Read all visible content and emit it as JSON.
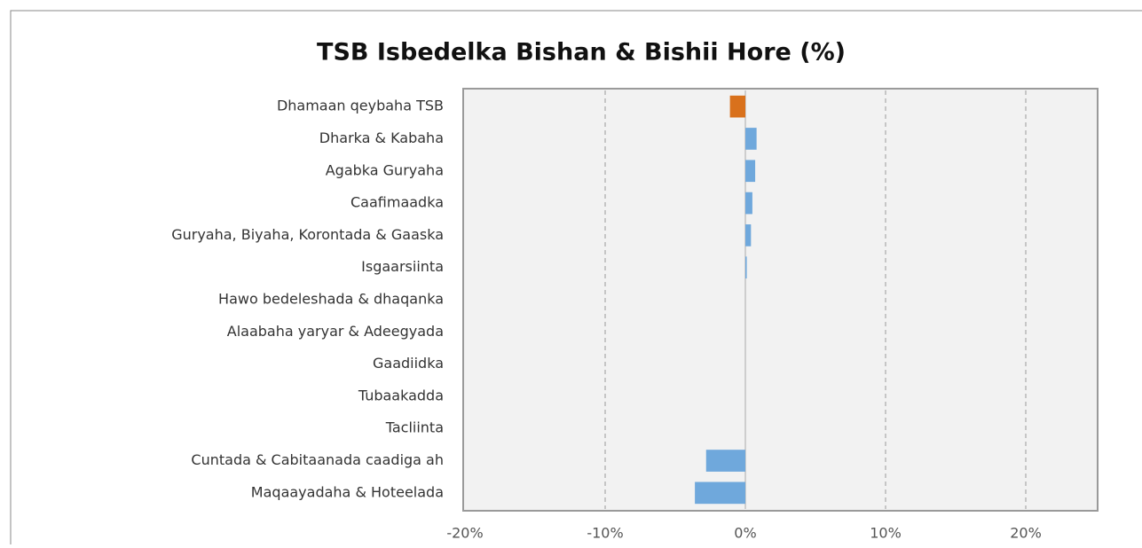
{
  "chart_data": {
    "type": "barh",
    "title": "TSB Isbedelka Bishan & Bishii Hore (%)",
    "categories": [
      "Dhamaan qeybaha  TSB",
      "Dharka & Kabaha",
      "Agabka Guryaha",
      "Caafimaadka",
      "Guryaha, Biyaha, Korontada & Gaaska",
      "Isgaarsiinta",
      "Hawo bedeleshada & dhaqanka",
      "Alaabaha yaryar & Adeegyada",
      "Gaadiidka",
      "Tubaakadda",
      "Tacliinta",
      "Cuntada & Cabitaanada caadiga ah",
      "Maqaayadaha & Hoteelada"
    ],
    "values": [
      -1.1,
      0.8,
      0.7,
      0.5,
      0.4,
      0.1,
      0,
      0,
      0,
      0,
      0,
      -2.8,
      -3.6
    ],
    "colors": [
      "#d9711c",
      "#6fa8dc",
      "#6fa8dc",
      "#6fa8dc",
      "#6fa8dc",
      "#6fa8dc",
      "#6fa8dc",
      "#6fa8dc",
      "#6fa8dc",
      "#6fa8dc",
      "#6fa8dc",
      "#6fa8dc",
      "#6fa8dc"
    ],
    "xlim": [
      -20,
      25
    ],
    "xticks": [
      {
        "value": -20,
        "label": "-20%"
      },
      {
        "value": -10,
        "label": "-10%"
      },
      {
        "value": 0,
        "label": "0%"
      },
      {
        "value": 10,
        "label": "10%"
      },
      {
        "value": 20,
        "label": "20%"
      }
    ],
    "grid": true
  }
}
